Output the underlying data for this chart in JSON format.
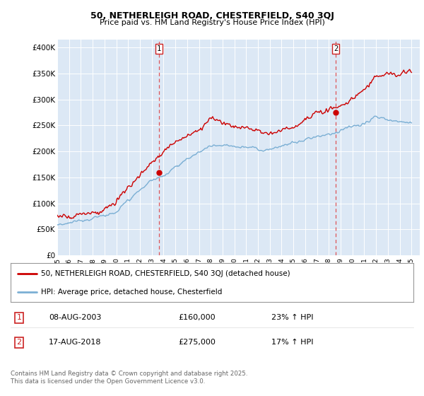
{
  "title1": "50, NETHERLEIGH ROAD, CHESTERFIELD, S40 3QJ",
  "title2": "Price paid vs. HM Land Registry's House Price Index (HPI)",
  "ylabel_ticks": [
    "£0",
    "£50K",
    "£100K",
    "£150K",
    "£200K",
    "£250K",
    "£300K",
    "£350K",
    "£400K"
  ],
  "ytick_vals": [
    0,
    50000,
    100000,
    150000,
    200000,
    250000,
    300000,
    350000,
    400000
  ],
  "ylim": [
    0,
    415000
  ],
  "xlim_start": 1995.3,
  "xlim_end": 2025.7,
  "xtick_years": [
    1995,
    1996,
    1997,
    1998,
    1999,
    2000,
    2001,
    2002,
    2003,
    2004,
    2005,
    2006,
    2007,
    2008,
    2009,
    2010,
    2011,
    2012,
    2013,
    2014,
    2015,
    2016,
    2017,
    2018,
    2019,
    2020,
    2021,
    2022,
    2023,
    2024,
    2025
  ],
  "hpi_color": "#7bafd4",
  "price_color": "#cc0000",
  "vline_color": "#dd2222",
  "marker1_year": 2003.6,
  "marker1_price": 160000,
  "marker2_year": 2018.6,
  "marker2_price": 275000,
  "bg_color": "#dce8f5",
  "legend1": "50, NETHERLEIGH ROAD, CHESTERFIELD, S40 3QJ (detached house)",
  "legend2": "HPI: Average price, detached house, Chesterfield",
  "note1_date": "08-AUG-2003",
  "note1_price": "£160,000",
  "note1_hpi": "23% ↑ HPI",
  "note2_date": "17-AUG-2018",
  "note2_price": "£275,000",
  "note2_hpi": "17% ↑ HPI",
  "footer": "Contains HM Land Registry data © Crown copyright and database right 2025.\nThis data is licensed under the Open Government Licence v3.0."
}
